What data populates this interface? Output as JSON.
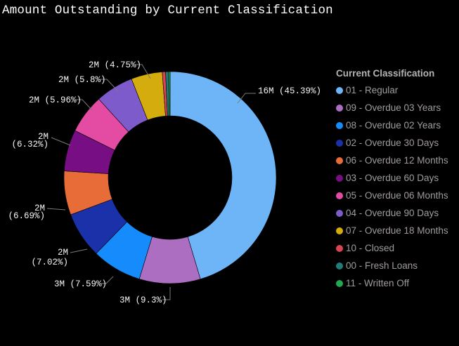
{
  "header": {
    "title": "Amount Outstanding by Current Classification"
  },
  "legend": {
    "title": "Current Classification"
  },
  "chart_data": {
    "type": "pie",
    "subtype": "donut",
    "title": "Amount Outstanding by Current Classification",
    "legend_title": "Current Classification",
    "legend_position": "right",
    "background": "#000000",
    "slices": [
      {
        "label": "01 - Regular",
        "value_label": "16M",
        "percent": 45.39,
        "color": "#6EB5F8",
        "data_label": "16M (45.39%)"
      },
      {
        "label": "09 - Overdue 03 Years",
        "value_label": "3M",
        "percent": 9.3,
        "color": "#AC6EC1",
        "data_label": "3M (9.3%)"
      },
      {
        "label": "08 - Overdue 02 Years",
        "value_label": "3M",
        "percent": 7.59,
        "color": "#168BFB",
        "data_label": "3M (7.59%)"
      },
      {
        "label": "02 - Overdue 30 Days",
        "value_label": "2M",
        "percent": 7.02,
        "color": "#1B31AA",
        "data_label": "2M (7.02%)"
      },
      {
        "label": "06 - Overdue 12 Months",
        "value_label": "2M",
        "percent": 6.69,
        "color": "#E76C37",
        "data_label": "2M (6.69%)"
      },
      {
        "label": "03 - Overdue 60 Days",
        "value_label": "2M",
        "percent": 6.32,
        "color": "#780E84",
        "data_label": "2M (6.32%)"
      },
      {
        "label": "05 - Overdue 06 Months",
        "value_label": "2M",
        "percent": 5.96,
        "color": "#E44BA3",
        "data_label": "2M (5.96%)"
      },
      {
        "label": "04 - Overdue 90 Days",
        "value_label": "2M",
        "percent": 5.8,
        "color": "#7E5BCB",
        "data_label": "2M (5.8%)"
      },
      {
        "label": "07 - Overdue 18 Months",
        "value_label": "2M",
        "percent": 4.75,
        "color": "#D4AC0D",
        "data_label": "2M (4.75%)"
      },
      {
        "label": "10 - Closed",
        "value_label": "",
        "percent": 0.5,
        "color": "#D64550",
        "data_label": ""
      },
      {
        "label": "00 - Fresh Loans",
        "value_label": "",
        "percent": 0.45,
        "color": "#237C7A",
        "data_label": ""
      },
      {
        "label": "11 - Written Off",
        "value_label": "",
        "percent": 0.23,
        "color": "#22A94F",
        "data_label": ""
      }
    ]
  }
}
